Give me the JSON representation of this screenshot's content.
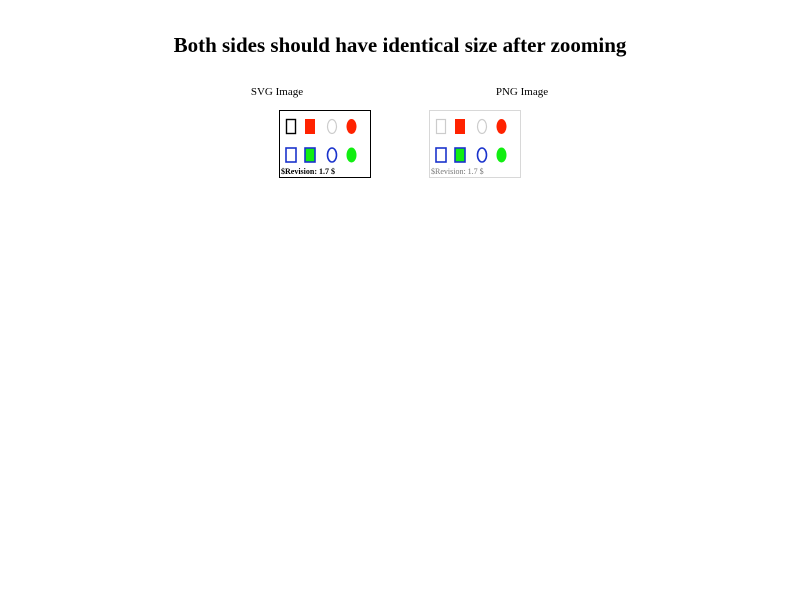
{
  "page": {
    "title": "Both sides should have identical size after zooming"
  },
  "svg_panel": {
    "caption": "SVG Image",
    "revision": "$Revision: 1.7 $"
  },
  "png_panel": {
    "caption": "PNG Image",
    "revision": "$Revision: 1.7 $"
  },
  "colors": {
    "red": "#ff2200",
    "green": "#11ee11",
    "blue": "#1a33cc",
    "light_gray": "#cccccc"
  }
}
